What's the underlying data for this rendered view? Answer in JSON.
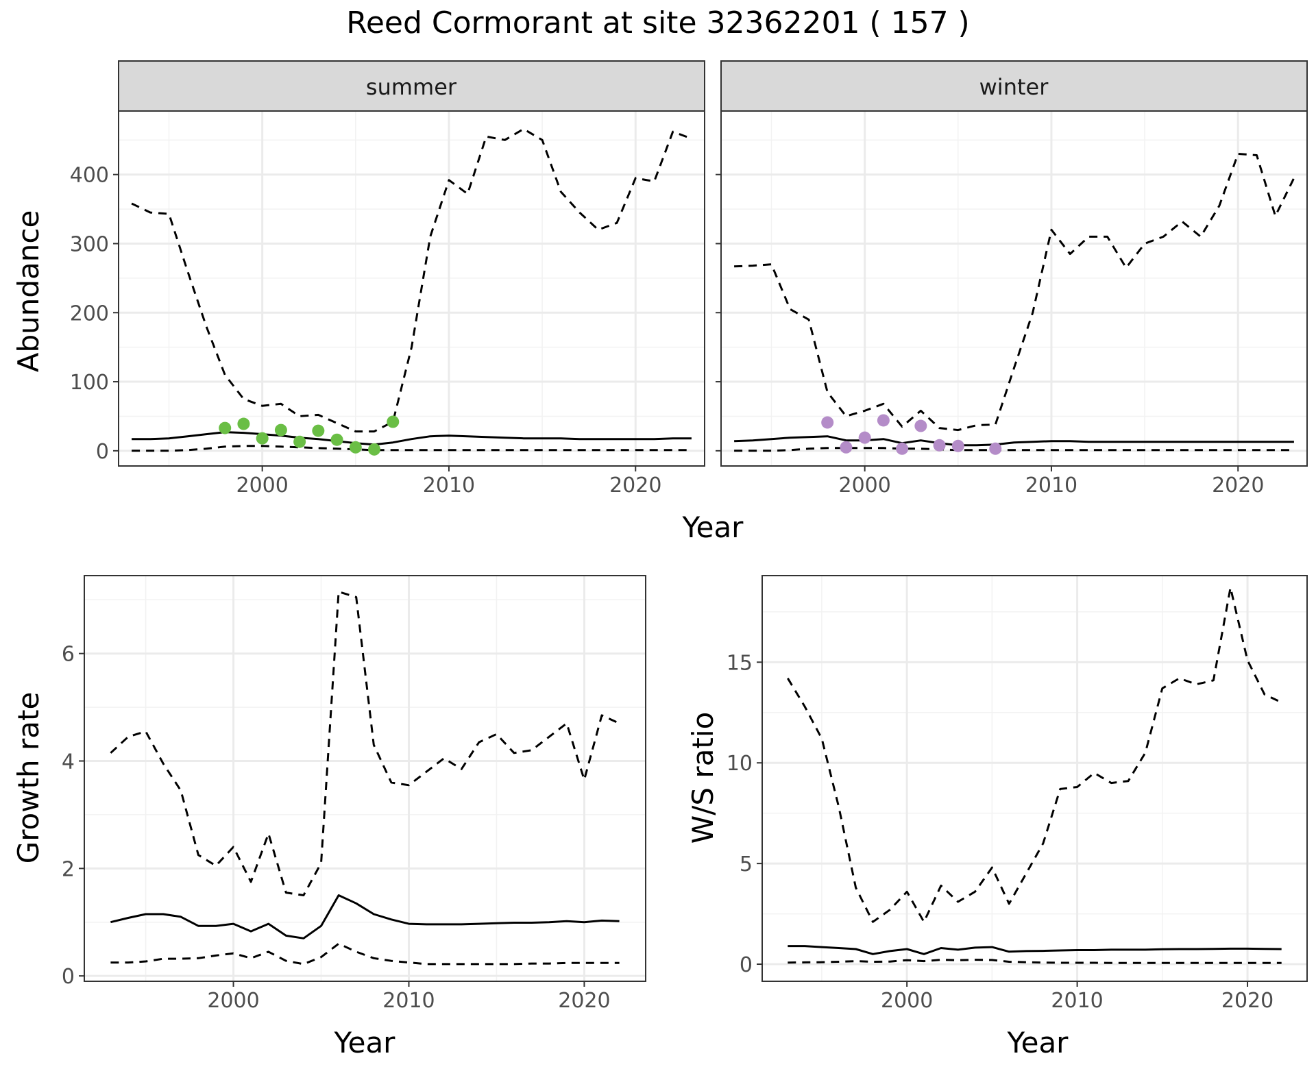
{
  "figure": {
    "title": "Reed Cormorant at site 32362201 ( 157 )"
  },
  "colors": {
    "summer_points": "#6ABE45",
    "winter_points": "#B48CC8",
    "lines": "#000000",
    "strip_fill": "#D9D9D9",
    "grid": "#EBEBEB"
  },
  "chart_data": [
    {
      "type": "line",
      "facet": "summer",
      "xlabel": "Year",
      "ylabel": "Abundance",
      "xlim": [
        1992.3,
        2023.7
      ],
      "ylim": [
        -22,
        492
      ],
      "xticks": [
        2000,
        2010,
        2020
      ],
      "yticks": [
        0,
        100,
        200,
        300,
        400
      ],
      "grid": true,
      "series": [
        {
          "role": "estimate",
          "style": "solid",
          "x": [
            1993,
            1994,
            1995,
            1996,
            1997,
            1998,
            1999,
            2000,
            2001,
            2002,
            2003,
            2004,
            2005,
            2006,
            2007,
            2008,
            2009,
            2010,
            2011,
            2012,
            2013,
            2014,
            2015,
            2016,
            2017,
            2018,
            2019,
            2020,
            2021,
            2022,
            2023
          ],
          "y": [
            17,
            17,
            18,
            21,
            24,
            27,
            26,
            24,
            22,
            19,
            17,
            14,
            11,
            9,
            12,
            17,
            21,
            22,
            21,
            20,
            19,
            18,
            18,
            18,
            17,
            17,
            17,
            17,
            17,
            18,
            18
          ]
        },
        {
          "role": "upper",
          "style": "dashed",
          "x": [
            1993,
            1994,
            1995,
            1996,
            1997,
            1998,
            1999,
            2000,
            2001,
            2002,
            2003,
            2004,
            2005,
            2006,
            2007,
            2008,
            2009,
            2010,
            2011,
            2012,
            2013,
            2014,
            2015,
            2016,
            2017,
            2018,
            2019,
            2020,
            2021,
            2022,
            2023
          ],
          "y": [
            358,
            345,
            343,
            260,
            180,
            110,
            75,
            65,
            68,
            50,
            52,
            40,
            28,
            28,
            42,
            150,
            310,
            392,
            372,
            455,
            450,
            466,
            450,
            375,
            345,
            320,
            330,
            395,
            390,
            462,
            452
          ]
        },
        {
          "role": "lower",
          "style": "dashed",
          "x": [
            1993,
            1994,
            1995,
            1996,
            1997,
            1998,
            1999,
            2000,
            2001,
            2002,
            2003,
            2004,
            2005,
            2006,
            2007,
            2008,
            2009,
            2010,
            2011,
            2012,
            2013,
            2014,
            2015,
            2016,
            2017,
            2018,
            2019,
            2020,
            2021,
            2022,
            2023
          ],
          "y": [
            0,
            0,
            0,
            1,
            3,
            6,
            7,
            7,
            6,
            5,
            4,
            3,
            2,
            1,
            1,
            1,
            1,
            1,
            1,
            1,
            1,
            1,
            1,
            1,
            1,
            1,
            1,
            1,
            1,
            1,
            1
          ]
        },
        {
          "role": "observed",
          "style": "points",
          "x": [
            1998,
            1999,
            2000,
            2001,
            2002,
            2003,
            2004,
            2005,
            2006,
            2007
          ],
          "y": [
            33,
            39,
            18,
            30,
            13,
            29,
            16,
            5,
            2,
            42
          ]
        }
      ]
    },
    {
      "type": "line",
      "facet": "winter",
      "xlabel": "Year",
      "ylabel": "Abundance",
      "xlim": [
        1992.3,
        2023.7
      ],
      "ylim": [
        -22,
        492
      ],
      "xticks": [
        2000,
        2010,
        2020
      ],
      "yticks": [
        0,
        100,
        200,
        300,
        400
      ],
      "grid": true,
      "series": [
        {
          "role": "estimate",
          "style": "solid",
          "x": [
            1993,
            1994,
            1995,
            1996,
            1997,
            1998,
            1999,
            2000,
            2001,
            2002,
            2003,
            2004,
            2005,
            2006,
            2007,
            2008,
            2009,
            2010,
            2011,
            2012,
            2013,
            2014,
            2015,
            2016,
            2017,
            2018,
            2019,
            2020,
            2021,
            2022,
            2023
          ],
          "y": [
            14,
            15,
            17,
            19,
            20,
            21,
            15,
            15,
            17,
            11,
            15,
            11,
            8,
            8,
            9,
            12,
            13,
            14,
            14,
            13,
            13,
            13,
            13,
            13,
            13,
            13,
            13,
            13,
            13,
            13,
            13
          ]
        },
        {
          "role": "upper",
          "style": "dashed",
          "x": [
            1993,
            1994,
            1995,
            1996,
            1997,
            1998,
            1999,
            2000,
            2001,
            2002,
            2003,
            2004,
            2005,
            2006,
            2007,
            2008,
            2009,
            2010,
            2011,
            2012,
            2013,
            2014,
            2015,
            2016,
            2017,
            2018,
            2019,
            2020,
            2021,
            2022,
            2023
          ],
          "y": [
            267,
            268,
            270,
            205,
            190,
            85,
            50,
            58,
            68,
            35,
            58,
            33,
            30,
            37,
            38,
            120,
            200,
            320,
            285,
            310,
            310,
            265,
            300,
            310,
            332,
            310,
            355,
            430,
            428,
            340,
            395
          ]
        },
        {
          "role": "lower",
          "style": "dashed",
          "x": [
            1993,
            1994,
            1995,
            1996,
            1997,
            1998,
            1999,
            2000,
            2001,
            2002,
            2003,
            2004,
            2005,
            2006,
            2007,
            2008,
            2009,
            2010,
            2011,
            2012,
            2013,
            2014,
            2015,
            2016,
            2017,
            2018,
            2019,
            2020,
            2021,
            2022,
            2023
          ],
          "y": [
            0,
            0,
            0,
            1,
            3,
            4,
            4,
            4,
            4,
            3,
            3,
            2,
            1,
            1,
            1,
            1,
            1,
            1,
            1,
            1,
            1,
            1,
            1,
            1,
            1,
            1,
            1,
            1,
            1,
            1,
            1
          ]
        },
        {
          "role": "observed",
          "style": "points",
          "x": [
            1998,
            1999,
            2000,
            2001,
            2002,
            2003,
            2004,
            2005,
            2007
          ],
          "y": [
            41,
            5,
            19,
            44,
            3,
            36,
            8,
            7,
            3
          ]
        }
      ]
    },
    {
      "type": "line",
      "xlabel": "Year",
      "ylabel": "Growth rate",
      "xlim": [
        1991.5,
        2023.5
      ],
      "ylim": [
        -0.1,
        7.45
      ],
      "xticks": [
        2000,
        2010,
        2020
      ],
      "yticks": [
        0,
        2,
        4,
        6
      ],
      "grid": true,
      "series": [
        {
          "role": "estimate",
          "style": "solid",
          "x": [
            1993,
            1994,
            1995,
            1996,
            1997,
            1998,
            1999,
            2000,
            2001,
            2002,
            2003,
            2004,
            2005,
            2006,
            2007,
            2008,
            2009,
            2010,
            2011,
            2012,
            2013,
            2014,
            2015,
            2016,
            2017,
            2018,
            2019,
            2020,
            2021,
            2022
          ],
          "y": [
            1.0,
            1.08,
            1.15,
            1.15,
            1.1,
            0.93,
            0.93,
            0.97,
            0.83,
            0.97,
            0.75,
            0.7,
            0.93,
            1.5,
            1.35,
            1.15,
            1.05,
            0.97,
            0.96,
            0.96,
            0.96,
            0.97,
            0.98,
            0.99,
            0.99,
            1.0,
            1.02,
            1.0,
            1.03,
            1.02
          ]
        },
        {
          "role": "upper",
          "style": "dashed",
          "x": [
            1993,
            1994,
            1995,
            1996,
            1997,
            1998,
            1999,
            2000,
            2001,
            2002,
            2003,
            2004,
            2005,
            2006,
            2007,
            2008,
            2009,
            2010,
            2011,
            2012,
            2013,
            2014,
            2015,
            2016,
            2017,
            2018,
            2019,
            2020,
            2021,
            2022
          ],
          "y": [
            4.15,
            4.45,
            4.55,
            3.95,
            3.45,
            2.25,
            2.05,
            2.4,
            1.75,
            2.65,
            1.55,
            1.5,
            2.1,
            7.15,
            7.05,
            4.3,
            3.6,
            3.55,
            3.8,
            4.05,
            3.85,
            4.35,
            4.5,
            4.15,
            4.2,
            4.45,
            4.7,
            3.65,
            4.85,
            4.7
          ]
        },
        {
          "role": "lower",
          "style": "dashed",
          "x": [
            1993,
            1994,
            1995,
            1996,
            1997,
            1998,
            1999,
            2000,
            2001,
            2002,
            2003,
            2004,
            2005,
            2006,
            2007,
            2008,
            2009,
            2010,
            2011,
            2012,
            2013,
            2014,
            2015,
            2016,
            2017,
            2018,
            2019,
            2020,
            2021,
            2022
          ],
          "y": [
            0.25,
            0.25,
            0.27,
            0.32,
            0.32,
            0.33,
            0.38,
            0.42,
            0.33,
            0.45,
            0.28,
            0.22,
            0.35,
            0.6,
            0.45,
            0.33,
            0.28,
            0.25,
            0.22,
            0.22,
            0.22,
            0.22,
            0.22,
            0.22,
            0.23,
            0.23,
            0.24,
            0.24,
            0.24,
            0.24
          ]
        }
      ]
    },
    {
      "type": "line",
      "xlabel": "Year",
      "ylabel": "W/S ratio",
      "xlim": [
        1991.5,
        2023.5
      ],
      "ylim": [
        -0.85,
        19.3
      ],
      "xticks": [
        2000,
        2010,
        2020
      ],
      "yticks": [
        0,
        5,
        10,
        15
      ],
      "grid": true,
      "series": [
        {
          "role": "estimate",
          "style": "solid",
          "x": [
            1993,
            1994,
            1995,
            1996,
            1997,
            1998,
            1999,
            2000,
            2001,
            2002,
            2003,
            2004,
            2005,
            2006,
            2007,
            2008,
            2009,
            2010,
            2011,
            2012,
            2013,
            2014,
            2015,
            2016,
            2017,
            2018,
            2019,
            2020,
            2021,
            2022
          ],
          "y": [
            0.9,
            0.9,
            0.85,
            0.8,
            0.75,
            0.5,
            0.65,
            0.75,
            0.5,
            0.8,
            0.72,
            0.82,
            0.85,
            0.62,
            0.65,
            0.66,
            0.68,
            0.7,
            0.7,
            0.72,
            0.72,
            0.72,
            0.74,
            0.75,
            0.75,
            0.76,
            0.77,
            0.77,
            0.76,
            0.75
          ]
        },
        {
          "role": "upper",
          "style": "dashed",
          "x": [
            1993,
            1994,
            1995,
            1996,
            1997,
            1998,
            1999,
            2000,
            2001,
            2002,
            2003,
            2004,
            2005,
            2006,
            2007,
            2008,
            2009,
            2010,
            2011,
            2012,
            2013,
            2014,
            2015,
            2016,
            2017,
            2018,
            2019,
            2020,
            2021,
            2022
          ],
          "y": [
            14.2,
            12.8,
            11.2,
            7.8,
            3.8,
            2.1,
            2.7,
            3.6,
            2.1,
            3.9,
            3.1,
            3.6,
            4.8,
            3.0,
            4.5,
            6.0,
            8.7,
            8.8,
            9.5,
            9.0,
            9.1,
            10.5,
            13.7,
            14.2,
            13.9,
            14.1,
            18.7,
            15.1,
            13.4,
            13.0
          ]
        },
        {
          "role": "lower",
          "style": "dashed",
          "x": [
            1993,
            1994,
            1995,
            1996,
            1997,
            1998,
            1999,
            2000,
            2001,
            2002,
            2003,
            2004,
            2005,
            2006,
            2007,
            2008,
            2009,
            2010,
            2011,
            2012,
            2013,
            2014,
            2015,
            2016,
            2017,
            2018,
            2019,
            2020,
            2021,
            2022
          ],
          "y": [
            0.08,
            0.09,
            0.1,
            0.12,
            0.15,
            0.12,
            0.13,
            0.2,
            0.15,
            0.22,
            0.2,
            0.22,
            0.21,
            0.12,
            0.1,
            0.08,
            0.07,
            0.07,
            0.07,
            0.06,
            0.06,
            0.06,
            0.06,
            0.06,
            0.06,
            0.06,
            0.06,
            0.06,
            0.06,
            0.06
          ]
        }
      ]
    }
  ]
}
